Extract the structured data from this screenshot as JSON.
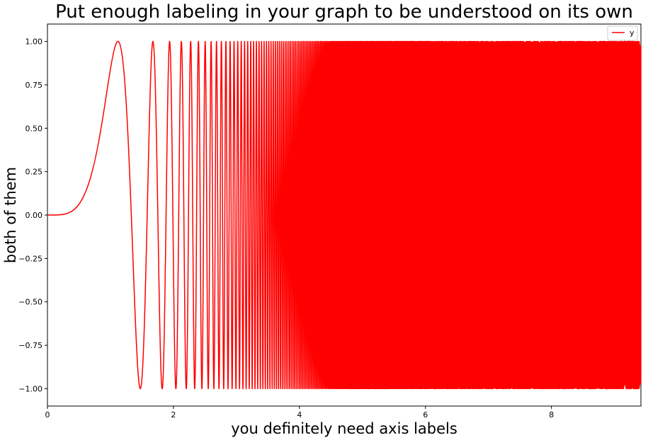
{
  "chart_data": {
    "type": "line",
    "title": "Put enough labeling in your graph to be understood on its own",
    "xlabel": "you definitely need axis labels",
    "ylabel": "both of them",
    "xlim": [
      0,
      9.42
    ],
    "ylim": [
      -1.1,
      1.1
    ],
    "x_ticks": [
      0,
      2,
      4,
      6,
      8
    ],
    "x_tick_labels": [
      "0",
      "2",
      "4",
      "6",
      "8"
    ],
    "y_ticks": [
      1.0,
      0.75,
      0.5,
      0.25,
      0.0,
      -0.25,
      -0.5,
      -0.75,
      -1.0
    ],
    "y_tick_labels": [
      "1.00",
      "0.75",
      "0.50",
      "0.25",
      "0.00",
      "−0.25",
      "−0.50",
      "−0.75",
      "−1.00"
    ],
    "grid": false,
    "legend_position": "top-right",
    "series": [
      {
        "name": "y",
        "color": "#ff0000",
        "function": "y = sin(x^4)",
        "x_range": [
          0,
          9.42
        ]
      }
    ]
  }
}
